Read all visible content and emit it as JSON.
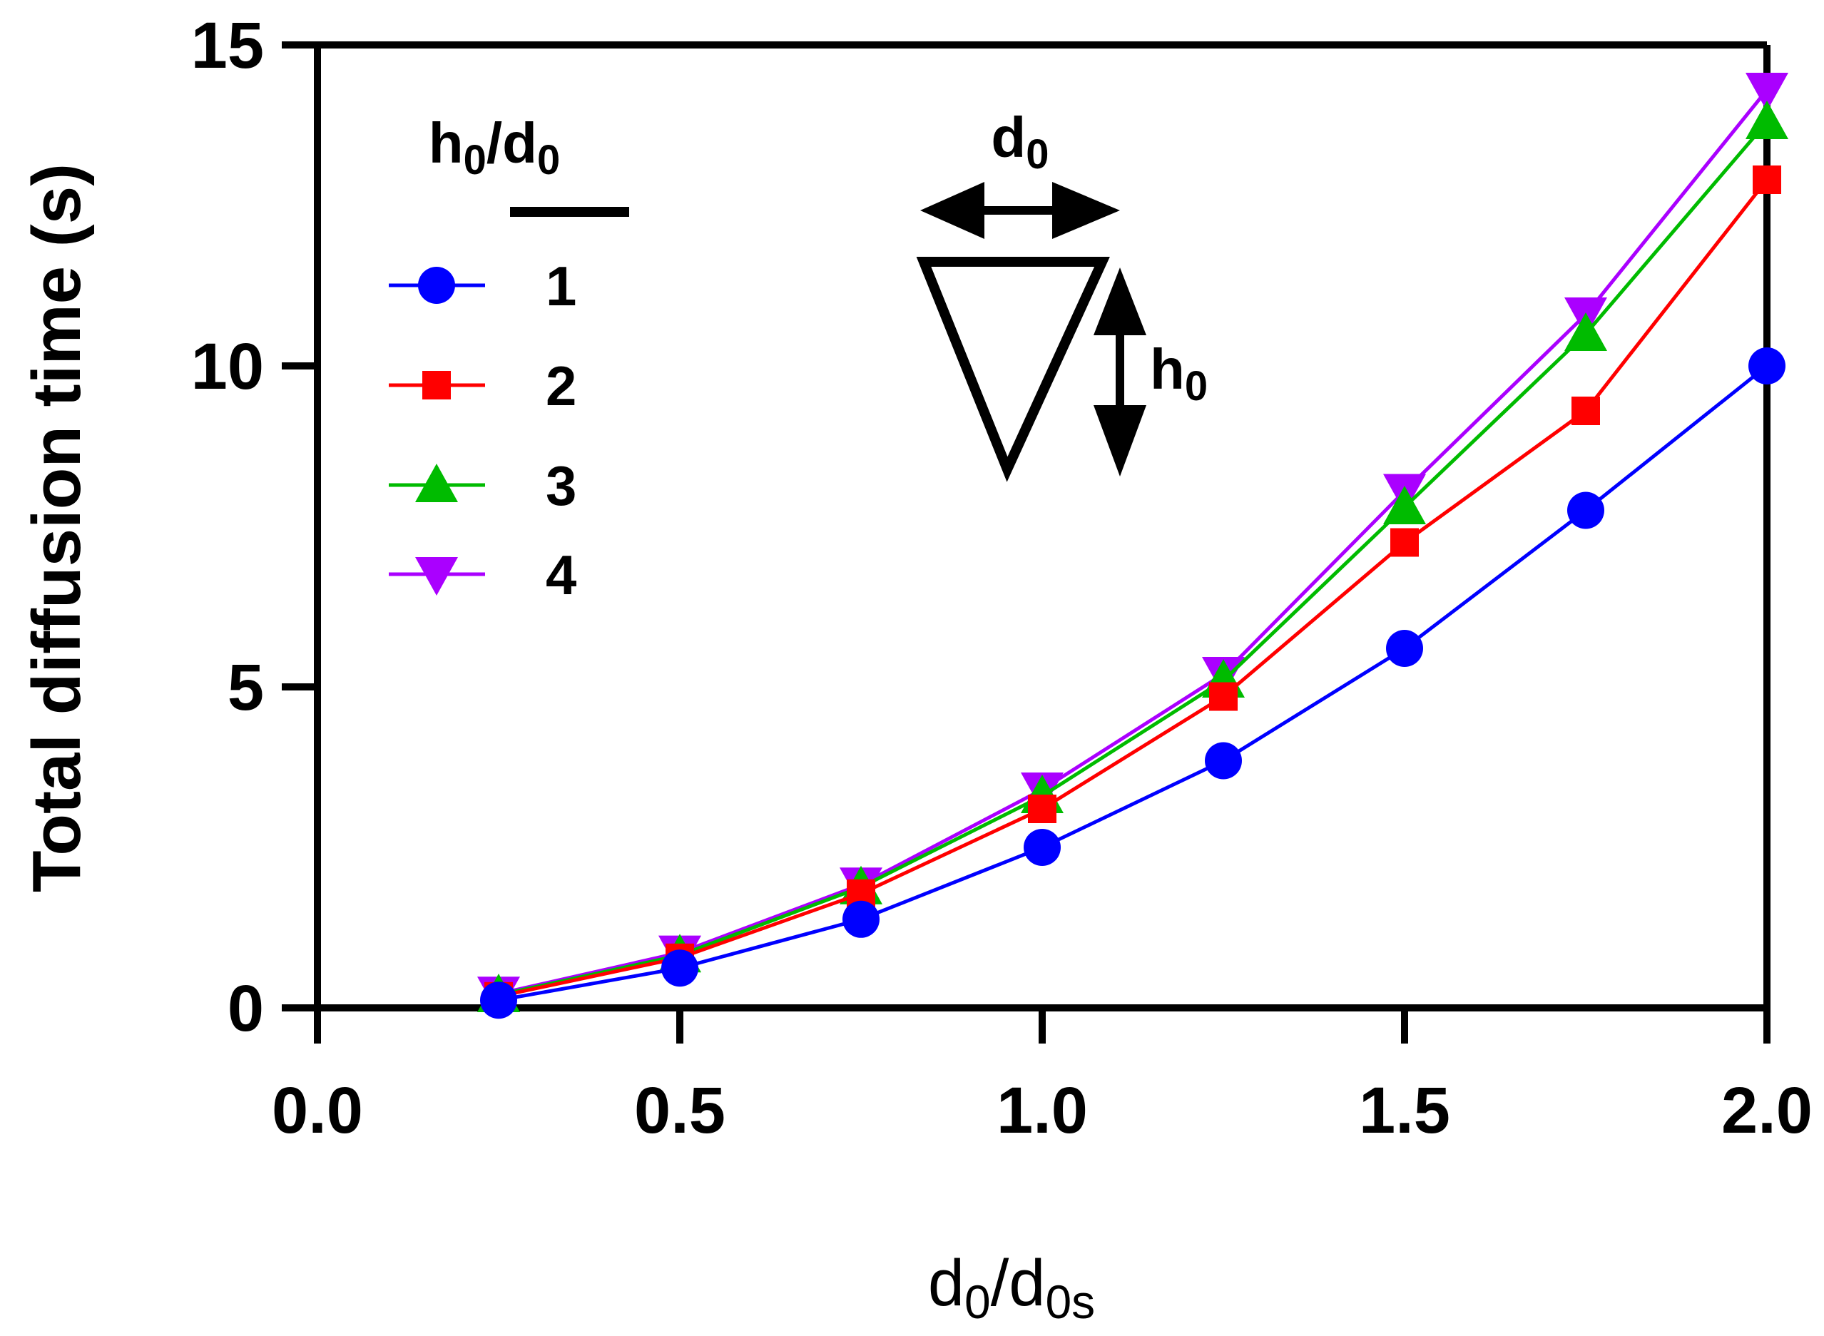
{
  "chart_data": {
    "type": "line",
    "title": "",
    "xlabel": {
      "base": "d",
      "sub1": "0",
      "sep": "/d",
      "sub2": "0s"
    },
    "ylabel": "Total diffusion time (s)",
    "xlim": [
      0,
      2
    ],
    "ylim": [
      0,
      15
    ],
    "x_ticks": [
      0,
      0.5,
      1,
      1.5,
      2
    ],
    "x_tick_labels": [
      "0.0",
      "0.5",
      "1.0",
      "1.5",
      "2.0"
    ],
    "y_ticks": [
      0,
      5,
      10,
      15
    ],
    "y_tick_labels": [
      "0",
      "5",
      "10",
      "15"
    ],
    "grid": false,
    "legend": {
      "title": {
        "h": "h",
        "hsub": "0",
        "sep": "/d",
        "dsub": "0"
      },
      "placement": "top-left"
    },
    "x": [
      0.25,
      0.5,
      0.75,
      1.0,
      1.25,
      1.5,
      1.75,
      2.0
    ],
    "series": [
      {
        "name": "1",
        "color": "#0000ff",
        "marker": "circle",
        "values": [
          0.12,
          0.62,
          1.38,
          2.5,
          3.85,
          5.6,
          7.75,
          10.0
        ]
      },
      {
        "name": "2",
        "color": "#ff0000",
        "marker": "square",
        "values": [
          0.18,
          0.78,
          1.78,
          3.1,
          4.85,
          7.25,
          9.3,
          12.9
        ]
      },
      {
        "name": "3",
        "color": "#00bb00",
        "marker": "triangle-up",
        "values": [
          0.2,
          0.82,
          1.88,
          3.3,
          5.1,
          7.8,
          10.5,
          13.8
        ]
      },
      {
        "name": "4",
        "color": "#aa00ff",
        "marker": "triangle-down",
        "values": [
          0.22,
          0.86,
          1.92,
          3.4,
          5.2,
          8.05,
          10.8,
          14.3
        ]
      }
    ],
    "inset": {
      "width_label": {
        "base": "d",
        "sub": "0"
      },
      "height_label": {
        "base": "h",
        "sub": "0"
      }
    }
  }
}
